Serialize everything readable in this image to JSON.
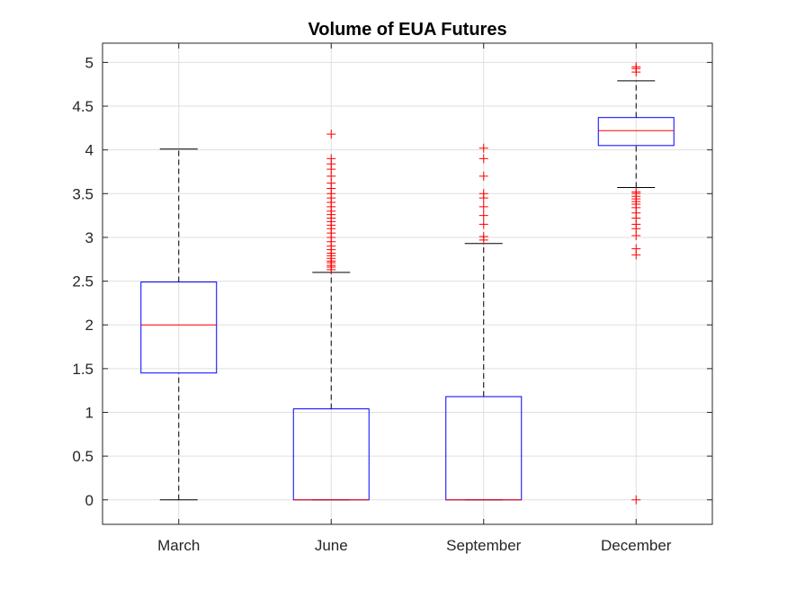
{
  "chart_data": {
    "type": "boxplot",
    "title": "Volume of EUA Futures",
    "xlabel": "",
    "ylabel": "",
    "categories": [
      "March",
      "June",
      "September",
      "December"
    ],
    "ylim": [
      -0.28,
      5.22
    ],
    "yticks": [
      0,
      0.5,
      1,
      1.5,
      2,
      2.5,
      3,
      3.5,
      4,
      4.5,
      5
    ],
    "ytick_labels": [
      "0",
      "0.5",
      "1",
      "1.5",
      "2",
      "2.5",
      "3",
      "3.5",
      "4",
      "4.5",
      "5"
    ],
    "grid": true,
    "colors": {
      "box": "#0000ff",
      "median": "#ff0000",
      "whisker": "#000000",
      "outlier": "#ff0000"
    },
    "boxes": [
      {
        "name": "March",
        "whisker_low": 0,
        "q1": 1.45,
        "median": 2.0,
        "q3": 2.49,
        "whisker_high": 4.01,
        "outliers": []
      },
      {
        "name": "June",
        "whisker_low": 0,
        "q1": 0,
        "median": 0,
        "q3": 1.04,
        "whisker_high": 2.6,
        "outliers": [
          2.63,
          2.66,
          2.68,
          2.71,
          2.73,
          2.76,
          2.79,
          2.82,
          2.86,
          2.9,
          2.95,
          3.0,
          3.05,
          3.1,
          3.14,
          3.18,
          3.22,
          3.26,
          3.3,
          3.35,
          3.4,
          3.45,
          3.5,
          3.56,
          3.62,
          3.7,
          3.78,
          3.84,
          3.9,
          4.18
        ]
      },
      {
        "name": "September",
        "whisker_low": 0,
        "q1": 0,
        "median": 0,
        "q3": 1.18,
        "whisker_high": 2.93,
        "outliers": [
          2.97,
          3.01,
          3.15,
          3.25,
          3.35,
          3.45,
          3.5,
          3.7,
          3.9,
          4.02
        ]
      },
      {
        "name": "December",
        "whisker_low": 3.57,
        "q1": 4.05,
        "median": 4.22,
        "q3": 4.37,
        "whisker_high": 4.79,
        "outliers": [
          0,
          2.8,
          2.87,
          3.02,
          3.1,
          3.15,
          3.22,
          3.28,
          3.34,
          3.38,
          3.41,
          3.44,
          3.47,
          3.5,
          3.52,
          4.89,
          4.93,
          4.95
        ]
      }
    ]
  }
}
